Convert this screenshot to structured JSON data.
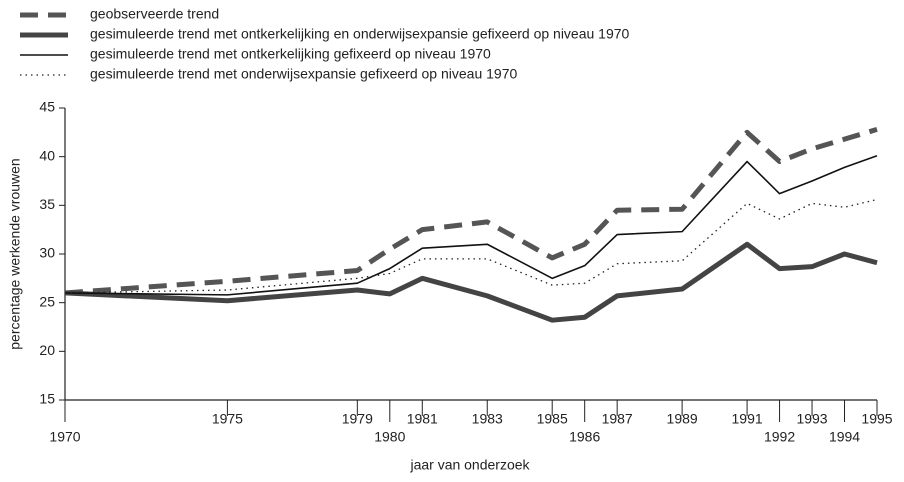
{
  "chart_data": {
    "type": "line",
    "x_label": "jaar van onderzoek",
    "y_label": "percentage werkende vrouwen",
    "x": [
      1970,
      1975,
      1979,
      1980,
      1981,
      1983,
      1985,
      1986,
      1987,
      1989,
      1991,
      1992,
      1993,
      1994,
      1995
    ],
    "series": [
      {
        "name": "geobserveerde trend",
        "color": "#555555",
        "style": "dashed",
        "values": [
          26,
          27.2,
          28.3,
          30.5,
          32.5,
          33.3,
          29.6,
          31,
          34.5,
          34.6,
          42.5,
          39.5,
          40.8,
          41.8,
          42.8
        ]
      },
      {
        "name": "gesimuleerde trend met ontkerkelijking en onderwijsexpansie gefixeerd op niveau 1970",
        "color": "#444444",
        "style": "thick",
        "values": [
          26,
          25.2,
          26.3,
          25.9,
          27.5,
          25.7,
          23.2,
          23.5,
          25.7,
          26.4,
          31,
          28.5,
          28.7,
          30,
          29.1
        ]
      },
      {
        "name": "gesimuleerde trend met ontkerkelijking gefixeerd op niveau 1970",
        "color": "#111111",
        "style": "solid",
        "values": [
          26,
          25.8,
          27,
          28.5,
          30.6,
          31,
          27.5,
          28.8,
          32,
          32.3,
          39.5,
          36.2,
          37.5,
          38.9,
          40.1
        ]
      },
      {
        "name": "gesimuleerde trend met onderwijsexpansie gefixeerd op niveau 1970",
        "color": "#222222",
        "style": "dotted",
        "values": [
          26,
          26.3,
          27.5,
          28,
          29.5,
          29.5,
          26.8,
          27,
          29,
          29.3,
          35.2,
          33.6,
          35.2,
          34.8,
          35.6
        ]
      }
    ],
    "xlim": [
      1970,
      1995
    ],
    "xticks": [
      1970,
      1975,
      1979,
      1980,
      1981,
      1983,
      1985,
      1986,
      1987,
      1989,
      1991,
      1992,
      1993,
      1994,
      1995
    ],
    "ylim": [
      15,
      45
    ],
    "yticks": [
      15,
      20,
      25,
      30,
      35,
      40,
      45
    ],
    "grid": false,
    "legend": "top-left"
  }
}
